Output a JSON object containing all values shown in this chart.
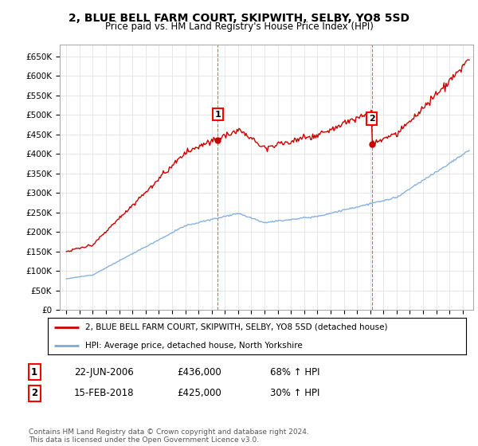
{
  "title": "2, BLUE BELL FARM COURT, SKIPWITH, SELBY, YO8 5SD",
  "subtitle": "Price paid vs. HM Land Registry's House Price Index (HPI)",
  "ylim": [
    0,
    680000
  ],
  "yticks": [
    0,
    50000,
    100000,
    150000,
    200000,
    250000,
    300000,
    350000,
    400000,
    450000,
    500000,
    550000,
    600000,
    650000
  ],
  "sale1_year": 2006.47,
  "sale1_price": 436000,
  "sale2_year": 2018.12,
  "sale2_price": 425000,
  "legend_line1": "2, BLUE BELL FARM COURT, SKIPWITH, SELBY, YO8 5SD (detached house)",
  "legend_line2": "HPI: Average price, detached house, North Yorkshire",
  "table_row1": [
    "1",
    "22-JUN-2006",
    "£436,000",
    "68% ↑ HPI"
  ],
  "table_row2": [
    "2",
    "15-FEB-2018",
    "£425,000",
    "30% ↑ HPI"
  ],
  "footer": "Contains HM Land Registry data © Crown copyright and database right 2024.\nThis data is licensed under the Open Government Licence v3.0.",
  "red_color": "#cc0000",
  "blue_color": "#7aaadd",
  "background_color": "#ffffff",
  "grid_color": "#dddddd",
  "xlim_left": 1994.5,
  "xlim_right": 2025.8
}
